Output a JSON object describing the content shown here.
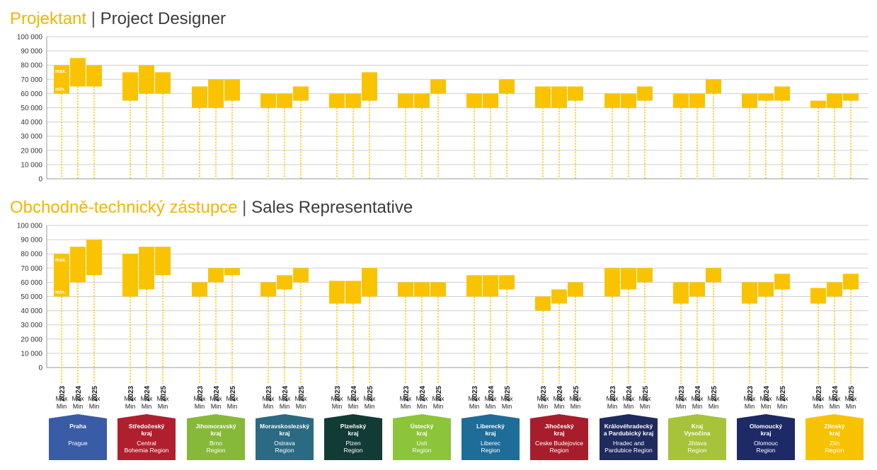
{
  "charts": [
    {
      "title_cz": "Projektant",
      "separator": "|",
      "title_en": "Project Designer",
      "y_ticks": [
        "0",
        "10 000",
        "20 000",
        "30 000",
        "40 000",
        "50 000",
        "60 000",
        "70 000",
        "80 000",
        "90 000",
        "100 000"
      ],
      "max_label": "max.",
      "min_label": "min."
    },
    {
      "title_cz": "Obchodně-technický zástupce",
      "separator": "|",
      "title_en": "Sales Representative",
      "y_ticks": [
        "0",
        "10 000",
        "20 000",
        "30 000",
        "40 000",
        "50 000",
        "60 000",
        "70 000",
        "80 000",
        "90 000",
        "100 000"
      ],
      "max_label": "max.",
      "min_label": "min."
    }
  ],
  "years": [
    "2023",
    "2024",
    "2025"
  ],
  "max_min_label": {
    "max": "Max",
    "min": "Min"
  },
  "regions": [
    {
      "name_cz": [
        "Praha"
      ],
      "name_en": [
        "Prague"
      ],
      "color": "#3a5ba6"
    },
    {
      "name_cz": [
        "Středočeský",
        "kraj"
      ],
      "name_en": [
        "Central",
        "Bohemia Region"
      ],
      "color": "#b01f2e"
    },
    {
      "name_cz": [
        "Jihomoravský",
        "kraj"
      ],
      "name_en": [
        "Brno",
        "Region"
      ],
      "color": "#86b93a"
    },
    {
      "name_cz": [
        "Moravskoslezský",
        "kraj"
      ],
      "name_en": [
        "Ostrava",
        "Region"
      ],
      "color": "#2a6a83"
    },
    {
      "name_cz": [
        "Plzeňský",
        "kraj"
      ],
      "name_en": [
        "Plzen",
        "Region"
      ],
      "color": "#123b35"
    },
    {
      "name_cz": [
        "Ústecký",
        "kraj"
      ],
      "name_en": [
        "Usti",
        "Region"
      ],
      "color": "#8cc43a"
    },
    {
      "name_cz": [
        "Liberecký",
        "kraj"
      ],
      "name_en": [
        "Liberec",
        "Region"
      ],
      "color": "#1e6c98"
    },
    {
      "name_cz": [
        "Jihočeský",
        "kraj"
      ],
      "name_en": [
        "Ceske Budejovice",
        "Region"
      ],
      "color": "#a81d2b"
    },
    {
      "name_cz": [
        "Královéhradecký",
        "a Pardubický kraj"
      ],
      "name_en": [
        "Hradec and",
        "Pardubice Region"
      ],
      "color": "#1f2b5e"
    },
    {
      "name_cz": [
        "Kraj",
        "Vysočina"
      ],
      "name_en": [
        "Jihlava",
        "Region"
      ],
      "color": "#a6c33a"
    },
    {
      "name_cz": [
        "Olomoucký",
        "kraj"
      ],
      "name_en": [
        "Olomouc",
        "Region"
      ],
      "color": "#1d2a66"
    },
    {
      "name_cz": [
        "Zlínský",
        "kraj"
      ],
      "name_en": [
        "Zlín",
        "Region"
      ],
      "color": "#f7c200"
    }
  ],
  "colors": {
    "bar": "#fac300",
    "accent_title": "#f2b600"
  },
  "chart_data": [
    {
      "type": "bar",
      "subtype": "floating-range",
      "title": "Projektant | Project Designer",
      "ylim": [
        0,
        100000
      ],
      "categories": [
        "Praha",
        "Středočeský kraj",
        "Jihomoravský kraj",
        "Moravskoslezský kraj",
        "Plzeňský kraj",
        "Ústecký kraj",
        "Liberecký kraj",
        "Jihočeský kraj",
        "Královéhradecký a Pardubický kraj",
        "Kraj Vysočina",
        "Olomoucký kraj",
        "Zlínský kraj"
      ],
      "series": [
        {
          "name": "2023",
          "min": [
            60000,
            55000,
            50000,
            50000,
            50000,
            50000,
            50000,
            50000,
            50000,
            50000,
            50000,
            50000
          ],
          "max": [
            80000,
            75000,
            65000,
            60000,
            60000,
            60000,
            60000,
            65000,
            60000,
            60000,
            60000,
            55000
          ]
        },
        {
          "name": "2024",
          "min": [
            65000,
            60000,
            50000,
            50000,
            50000,
            50000,
            50000,
            50000,
            50000,
            50000,
            55000,
            50000
          ],
          "max": [
            85000,
            80000,
            70000,
            60000,
            60000,
            60000,
            60000,
            65000,
            60000,
            60000,
            60000,
            60000
          ]
        },
        {
          "name": "2025",
          "min": [
            65000,
            60000,
            55000,
            55000,
            55000,
            60000,
            60000,
            55000,
            55000,
            60000,
            55000,
            55000
          ],
          "max": [
            80000,
            75000,
            70000,
            65000,
            75000,
            70000,
            70000,
            65000,
            65000,
            70000,
            65000,
            60000
          ]
        }
      ]
    },
    {
      "type": "bar",
      "subtype": "floating-range",
      "title": "Obchodně-technický zástupce | Sales Representative",
      "ylim": [
        0,
        100000
      ],
      "categories": [
        "Praha",
        "Středočeský kraj",
        "Jihomoravský kraj",
        "Moravskoslezský kraj",
        "Plzeňský kraj",
        "Ústecký kraj",
        "Liberecký kraj",
        "Jihočeský kraj",
        "Královéhradecký a Pardubický kraj",
        "Kraj Vysočina",
        "Olomoucký kraj",
        "Zlínský kraj"
      ],
      "series": [
        {
          "name": "2023",
          "min": [
            50000,
            50000,
            50000,
            50000,
            45000,
            50000,
            50000,
            40000,
            50000,
            45000,
            45000,
            45000
          ],
          "max": [
            80000,
            80000,
            60000,
            60000,
            61000,
            60000,
            65000,
            50000,
            70000,
            60000,
            60000,
            56000
          ]
        },
        {
          "name": "2024",
          "min": [
            60000,
            55000,
            60000,
            55000,
            45000,
            50000,
            50000,
            45000,
            55000,
            50000,
            50000,
            50000
          ],
          "max": [
            85000,
            85000,
            70000,
            65000,
            61000,
            60000,
            65000,
            55000,
            70000,
            60000,
            60000,
            60000
          ]
        },
        {
          "name": "2025",
          "min": [
            65000,
            65000,
            65000,
            60000,
            50000,
            50000,
            55000,
            50000,
            60000,
            60000,
            55000,
            55000
          ],
          "max": [
            90000,
            85000,
            70000,
            70000,
            70000,
            60000,
            65000,
            60000,
            70000,
            70000,
            66000,
            66000
          ]
        }
      ]
    }
  ]
}
